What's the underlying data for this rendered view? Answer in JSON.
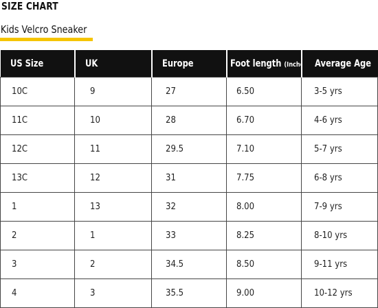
{
  "heading": {
    "title": "SIZE CHART",
    "subtitle": "Kids Velcro Sneaker"
  },
  "colors": {
    "accent_underline": "#f5c400",
    "header_bg": "#111111",
    "header_text": "#ffffff"
  },
  "table": {
    "columns": [
      {
        "label": "US Size",
        "suffix": ""
      },
      {
        "label": "UK",
        "suffix": ""
      },
      {
        "label": "Europe",
        "suffix": ""
      },
      {
        "label": "Foot length",
        "suffix": "(Inches)"
      },
      {
        "label": "Average Age",
        "suffix": ""
      }
    ],
    "rows": [
      [
        "10C",
        "9",
        "27",
        "6.50",
        "3-5 yrs"
      ],
      [
        "11C",
        "10",
        "28",
        "6.70",
        "4-6 yrs"
      ],
      [
        "12C",
        "11",
        "29.5",
        "7.10",
        "5-7 yrs"
      ],
      [
        "13C",
        "12",
        "31",
        "7.75",
        "6-8 yrs"
      ],
      [
        "1",
        "13",
        "32",
        "8.00",
        "7-9 yrs"
      ],
      [
        "2",
        "1",
        "33",
        "8.25",
        "8-10 yrs"
      ],
      [
        "3",
        "2",
        "34.5",
        "8.50",
        "9-11 yrs"
      ],
      [
        "4",
        "3",
        "35.5",
        "9.00",
        "10-12 yrs"
      ]
    ]
  }
}
